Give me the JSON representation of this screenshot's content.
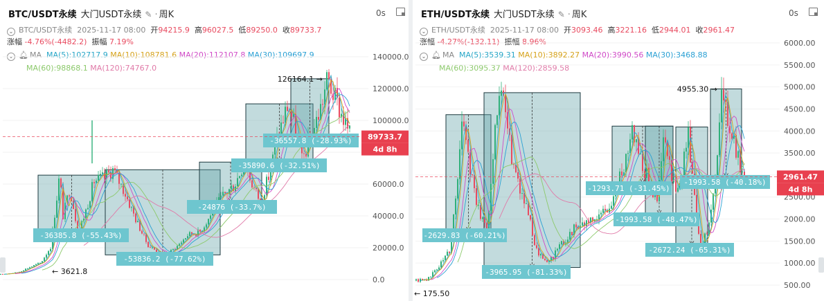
{
  "panels": [
    {
      "title": "BTC/USDT永续",
      "subtitle": "大门USDT永续",
      "period": "周K",
      "time_label": "0s",
      "info": {
        "symbol": "BTC/USDT永续",
        "date": "2025-11-17 08:00",
        "open_label": "开",
        "open": "94215.9",
        "high_label": "高",
        "high": "96027.5",
        "low_label": "低",
        "low": "89250.0",
        "close_label": "收",
        "close": "89733.7",
        "change_label": "涨幅",
        "change": "-4.76%(-4482.2)",
        "amp_label": "振幅",
        "amp": "7.19%"
      },
      "ma": {
        "label": "MA",
        "ma5": "MA(5):102717.9",
        "ma10": "MA(10):108781.6",
        "ma20": "MA(20):112107.8",
        "ma30": "MA(30):109697.9",
        "ma60": "MA(60):98868.1",
        "ma120": "MA(120):74767.0"
      },
      "price_tag": "89733.7",
      "countdown_tag": "4d 8h",
      "high_mark": "126164.1",
      "low_mark": "3621.8",
      "box_labels": [
        "-36385.8 (-55.43%)",
        "-53836.2 (-77.62%)",
        "-24876 (-33.7%)",
        "-35890.6 (-32.51%)",
        "-36557.8 (-28.93%)"
      ]
    },
    {
      "title": "ETH/USDT永续",
      "subtitle": "大门USDT永续",
      "period": "周K",
      "time_label": "0s",
      "info": {
        "symbol": "ETH/USDT永续",
        "date": "2025-11-17 08:00",
        "open_label": "开",
        "open": "3093.46",
        "high_label": "高",
        "high": "3221.16",
        "low_label": "低",
        "low": "2944.01",
        "close_label": "收",
        "close": "2961.47",
        "change_label": "涨幅",
        "change": "-4.27%(-132.11)",
        "amp_label": "振幅",
        "amp": "8.96%"
      },
      "ma": {
        "label": "MA",
        "ma5": "MA(5):3539.31",
        "ma10": "MA(10):3892.27",
        "ma20": "MA(20):3990.56",
        "ma30": "MA(30):3468.88",
        "ma60": "MA(60):3095.37",
        "ma120": "MA(120):2859.58"
      },
      "price_tag": "2961.47",
      "countdown_tag": "4d 8h",
      "high_mark": "4955.30",
      "low_mark": "175.50",
      "box_labels": [
        "-2629.83 (-60.21%)",
        "-3965.95 (-81.33%)",
        "-1293.71 (-31.45%)",
        "-1993.58 (-48.47%)",
        "-2672.24 (-65.31%)",
        "-1993.58 (-40.18%)"
      ]
    }
  ],
  "chart_data": [
    {
      "type": "candlestick",
      "title": "BTC/USDT永续",
      "period": "周K",
      "ylim": [
        0,
        140000
      ],
      "y_ticks": [
        "0.0",
        "20000.0",
        "40000.0",
        "60000.0",
        "80000.0",
        "100000.0",
        "120000.0",
        "140000.0"
      ],
      "last": {
        "open": 94215.9,
        "high": 96027.5,
        "low": 89250.0,
        "close": 89733.7
      },
      "all_time_high": 126164.1,
      "marked_low": 3621.8,
      "price_line": 89733.7,
      "drawdowns": [
        {
          "label": "-36385.8 (-55.43%)",
          "from": 65600,
          "to": 29200
        },
        {
          "label": "-53836.2 (-77.62%)",
          "from": 69000,
          "to": 15500
        },
        {
          "label": "-24876 (-33.7%)",
          "from": 73800,
          "to": 49000
        },
        {
          "label": "-35890.6 (-32.51%)",
          "from": 110400,
          "to": 74500
        },
        {
          "label": "-36557.8 (-28.93%)",
          "from": 126164,
          "to": 89600
        }
      ],
      "moving_averages": {
        "MA5": 102717.9,
        "MA10": 108781.6,
        "MA20": 112107.8,
        "MA30": 109697.9,
        "MA60": 98868.1,
        "MA120": 74767.0
      }
    },
    {
      "type": "candlestick",
      "title": "ETH/USDT永续",
      "period": "周K",
      "ylim": [
        500,
        6000
      ],
      "y_ticks": [
        "500.00",
        "1000.00",
        "1500.00",
        "2000.00",
        "2500.00",
        "3000.00",
        "3500.00",
        "4000.00",
        "4500.00",
        "5000.00",
        "5500.00",
        "6000.00"
      ],
      "last": {
        "open": 3093.46,
        "high": 3221.16,
        "low": 2944.01,
        "close": 2961.47
      },
      "all_time_high": 4955.3,
      "marked_low": 175.5,
      "price_line": 2961.47,
      "drawdowns": [
        {
          "label": "-2629.83 (-60.21%)",
          "from": 4370,
          "to": 1740
        },
        {
          "label": "-3965.95 (-81.33%)",
          "from": 4870,
          "to": 900
        },
        {
          "label": "-1293.71 (-31.45%)",
          "from": 4110,
          "to": 2820
        },
        {
          "label": "-1993.58 (-48.47%)",
          "from": 4110,
          "to": 2120
        },
        {
          "label": "-2672.24 (-65.31%)",
          "from": 4090,
          "to": 1420
        },
        {
          "label": "-1993.58 (-40.18%)",
          "from": 4955,
          "to": 2960
        }
      ],
      "moving_averages": {
        "MA5": 3539.31,
        "MA10": 3892.27,
        "MA20": 3990.56,
        "MA30": 3468.88,
        "MA60": 3095.37,
        "MA120": 2859.58
      }
    }
  ]
}
